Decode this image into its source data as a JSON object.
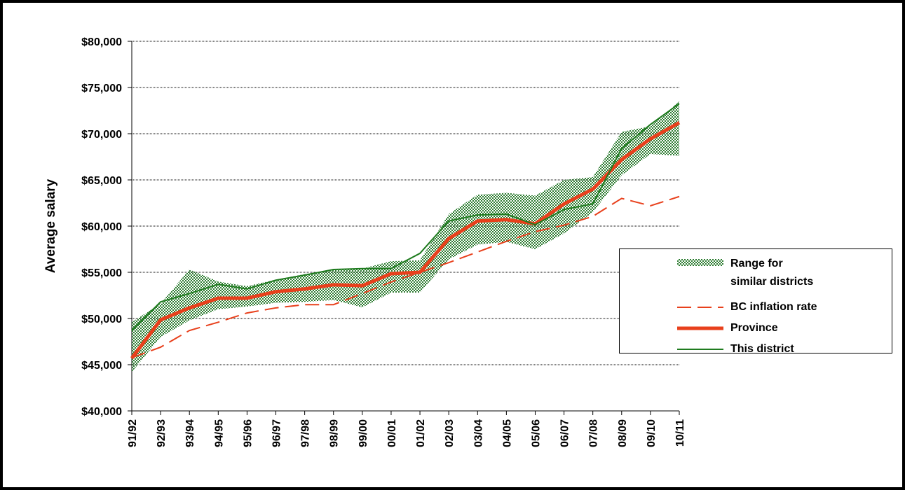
{
  "chart_data": {
    "type": "line",
    "y_label": "Average salary",
    "categories": [
      "91/92",
      "92/93",
      "93/94",
      "94/95",
      "95/96",
      "96/97",
      "97/98",
      "98/99",
      "99/00",
      "00/01",
      "01/02",
      "02/03",
      "03/04",
      "04/05",
      "05/06",
      "06/07",
      "07/08",
      "08/09",
      "09/10",
      "10/11"
    ],
    "ylim": [
      40000,
      80000
    ],
    "yticks": [
      {
        "value": 40000,
        "label": "$40,000"
      },
      {
        "value": 45000,
        "label": "$45,000"
      },
      {
        "value": 50000,
        "label": "$50,000"
      },
      {
        "value": 55000,
        "label": "$55,000"
      },
      {
        "value": 60000,
        "label": "$60,000"
      },
      {
        "value": 65000,
        "label": "$65,000"
      },
      {
        "value": 70000,
        "label": "$70,000"
      },
      {
        "value": 75000,
        "label": "$75,000"
      },
      {
        "value": 80000,
        "label": "$80,000"
      }
    ],
    "grid": true,
    "legend": "right",
    "series": [
      {
        "name": "Range for\nsimilar districts",
        "color": "#2e7d32",
        "style": "band",
        "low": [
          44200,
          48000,
          49800,
          51000,
          51300,
          51700,
          51800,
          52000,
          51200,
          52800,
          52800,
          56400,
          58000,
          58300,
          57500,
          59200,
          61500,
          65500,
          67800,
          67600
        ],
        "high": [
          49600,
          51600,
          55300,
          54000,
          53500,
          54200,
          54800,
          55300,
          55400,
          56200,
          56300,
          61300,
          63400,
          63600,
          63300,
          65000,
          65300,
          70200,
          70800,
          73500
        ]
      },
      {
        "name": "BC inflation rate",
        "color": "#e8401c",
        "style": "dashed",
        "width": 2,
        "values": [
          45750,
          46900,
          48700,
          49600,
          50600,
          51150,
          51500,
          51500,
          52700,
          53950,
          55000,
          56050,
          57200,
          58350,
          59400,
          60100,
          61050,
          63000,
          62200,
          63200
        ]
      },
      {
        "name": "Province",
        "color": "#e8401c",
        "style": "solid",
        "width": 5,
        "values": [
          45700,
          49850,
          51150,
          52200,
          52200,
          52900,
          53200,
          53650,
          53550,
          54850,
          55000,
          58650,
          60550,
          60700,
          60250,
          62400,
          64000,
          67200,
          69450,
          71200
        ]
      },
      {
        "name": "This district",
        "color": "#1e7b1e",
        "style": "solid",
        "width": 2,
        "values": [
          48700,
          51800,
          52700,
          53700,
          53200,
          54150,
          54700,
          55300,
          55400,
          55400,
          57050,
          60550,
          61200,
          61300,
          60150,
          61800,
          62400,
          68400,
          71000,
          73250
        ]
      }
    ]
  }
}
